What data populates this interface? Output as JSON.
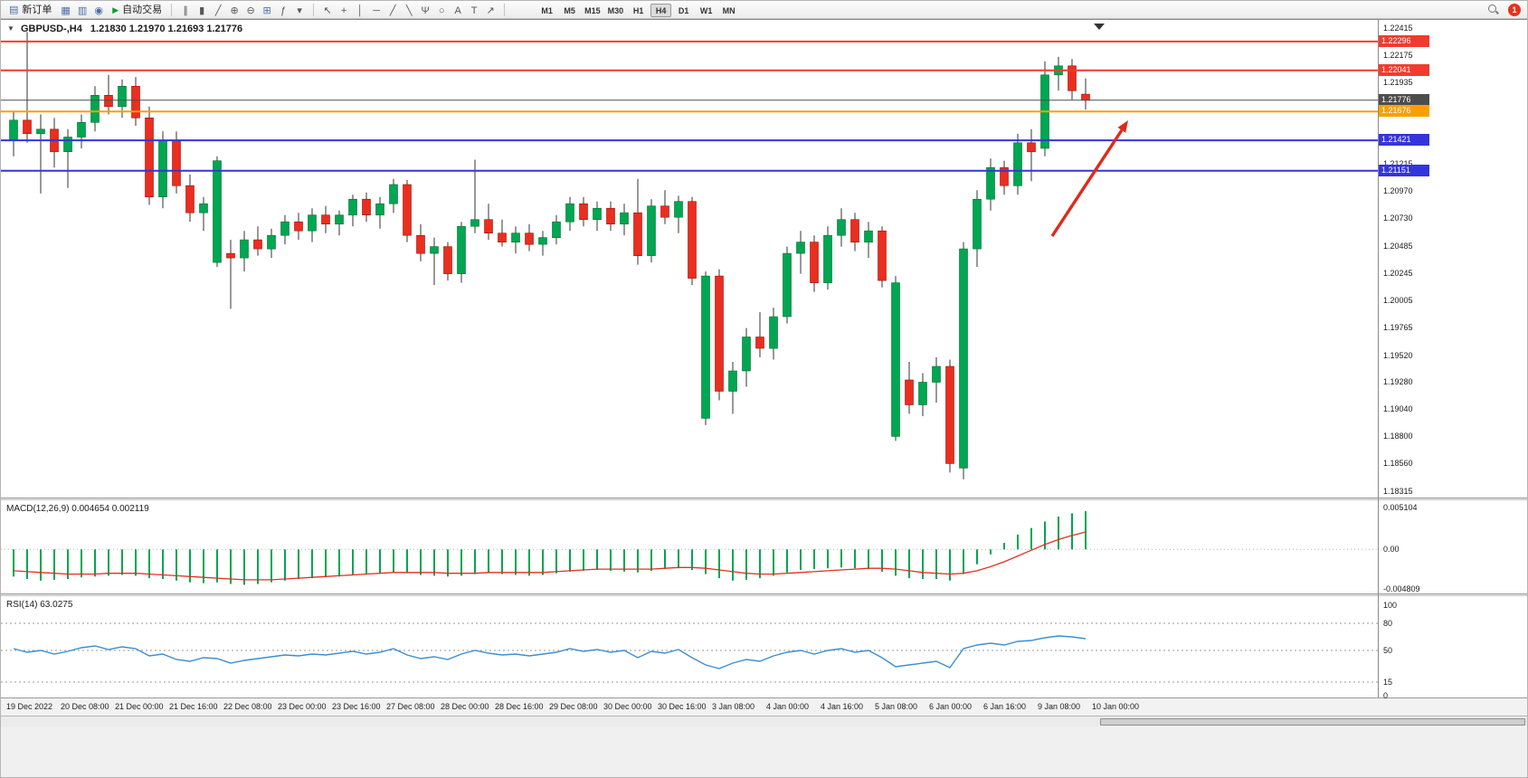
{
  "toolbar": {
    "new_order_label": "新订单",
    "new_order_icon_glyph": "▤",
    "autotrading_label": "自动交易",
    "autotrading_icon_glyph": "▶",
    "window_icon_buttons": [
      {
        "name": "charts-window-icon",
        "glyph": "▦"
      },
      {
        "name": "market-watch-icon",
        "glyph": "▥"
      },
      {
        "name": "data-window-icon",
        "glyph": "◉"
      }
    ],
    "chart_tool_buttons": [
      {
        "name": "bar-chart-icon",
        "glyph": "∥"
      },
      {
        "name": "candlestick-chart-icon",
        "glyph": "▮"
      },
      {
        "name": "line-chart-icon",
        "glyph": "╱"
      },
      {
        "name": "zoom-in-icon",
        "glyph": "⊕"
      },
      {
        "name": "zoom-out-icon",
        "glyph": "⊖"
      },
      {
        "name": "tile-windows-icon",
        "glyph": "⊞"
      },
      {
        "name": "indicators-icon",
        "glyph": "ƒ"
      },
      {
        "name": "periods-dropdown-icon",
        "glyph": "▾"
      }
    ],
    "drawing_tool_buttons": [
      {
        "name": "cursor-icon",
        "glyph": "↖"
      },
      {
        "name": "crosshair-icon",
        "glyph": "+"
      },
      {
        "name": "vertical-line-icon",
        "glyph": "│"
      },
      {
        "name": "horizontal-line-icon",
        "glyph": "─"
      },
      {
        "name": "trendline-icon",
        "glyph": "╱"
      },
      {
        "name": "channel-icon",
        "glyph": "╲"
      },
      {
        "name": "pitchfork-icon",
        "glyph": "Ψ"
      },
      {
        "name": "shapes-icon",
        "glyph": "○"
      },
      {
        "name": "text-icon",
        "glyph": "A"
      },
      {
        "name": "label-icon",
        "glyph": "T"
      },
      {
        "name": "arrows-icon",
        "glyph": "↗"
      }
    ],
    "timeframes": [
      "M1",
      "M5",
      "M15",
      "M30",
      "H1",
      "H4",
      "D1",
      "W1",
      "MN"
    ],
    "active_timeframe": "H4",
    "notification_count": "1"
  },
  "chart": {
    "collapse_glyph": "▼",
    "title_symbol": "GBPUSD-,H4",
    "title_quote": "1.21830 1.21970 1.21693 1.21776"
  },
  "chart_data": [
    {
      "type": "candlestick",
      "symbol": "GBPUSD-",
      "timeframe": "H4",
      "ylim": [
        1.18315,
        1.22415
      ],
      "bull_color": "#00a651",
      "bull_edge": "#00702f",
      "bear_color": "#ea2e1f",
      "bear_edge": "#9c130a",
      "wick_color": "#333333",
      "ohlc": [
        [
          1.2142,
          1.2168,
          1.2128,
          1.216
        ],
        [
          1.216,
          1.2238,
          1.214,
          1.2148
        ],
        [
          1.2148,
          1.2165,
          1.2095,
          1.2152
        ],
        [
          1.2152,
          1.2162,
          1.2118,
          1.2132
        ],
        [
          1.2132,
          1.2152,
          1.21,
          1.2145
        ],
        [
          1.2145,
          1.2165,
          1.2135,
          1.2158
        ],
        [
          1.2158,
          1.219,
          1.215,
          1.2182
        ],
        [
          1.2182,
          1.22,
          1.2165,
          1.2172
        ],
        [
          1.2172,
          1.2196,
          1.2162,
          1.219
        ],
        [
          1.219,
          1.2198,
          1.2155,
          1.2162
        ],
        [
          1.2162,
          1.2172,
          1.2085,
          1.2092
        ],
        [
          1.2092,
          1.215,
          1.2082,
          1.2142
        ],
        [
          1.2142,
          1.215,
          1.2095,
          1.2102
        ],
        [
          1.2102,
          1.2112,
          1.207,
          1.2078
        ],
        [
          1.2078,
          1.2092,
          1.2062,
          1.2086
        ],
        [
          1.2034,
          1.2128,
          1.203,
          1.2124
        ],
        [
          1.2042,
          1.2054,
          1.1993,
          1.2038
        ],
        [
          1.2038,
          1.2062,
          1.2026,
          1.2054
        ],
        [
          1.2054,
          1.2066,
          1.204,
          1.2046
        ],
        [
          1.2046,
          1.2064,
          1.2038,
          1.2058
        ],
        [
          1.2058,
          1.2076,
          1.205,
          1.207
        ],
        [
          1.207,
          1.2078,
          1.2054,
          1.2062
        ],
        [
          1.2062,
          1.2082,
          1.2052,
          1.2076
        ],
        [
          1.2076,
          1.2084,
          1.206,
          1.2068
        ],
        [
          1.2068,
          1.208,
          1.2058,
          1.2076
        ],
        [
          1.2076,
          1.2094,
          1.2066,
          1.209
        ],
        [
          1.209,
          1.2096,
          1.207,
          1.2076
        ],
        [
          1.2076,
          1.2092,
          1.2064,
          1.2086
        ],
        [
          1.2086,
          1.2108,
          1.2078,
          1.2103
        ],
        [
          1.2103,
          1.2107,
          1.2052,
          1.2058
        ],
        [
          1.2058,
          1.2068,
          1.2035,
          1.2042
        ],
        [
          1.2042,
          1.2056,
          1.2014,
          1.2048
        ],
        [
          1.2048,
          1.2052,
          1.2018,
          1.2024
        ],
        [
          1.2024,
          1.207,
          1.2016,
          1.2066
        ],
        [
          1.2066,
          1.2125,
          1.206,
          1.2072
        ],
        [
          1.2072,
          1.2086,
          1.2054,
          1.206
        ],
        [
          1.206,
          1.2072,
          1.2048,
          1.2052
        ],
        [
          1.2052,
          1.2066,
          1.2042,
          1.206
        ],
        [
          1.206,
          1.2068,
          1.2044,
          1.205
        ],
        [
          1.205,
          1.2062,
          1.204,
          1.2056
        ],
        [
          1.2056,
          1.2076,
          1.205,
          1.207
        ],
        [
          1.207,
          1.2092,
          1.2062,
          1.2086
        ],
        [
          1.2086,
          1.2092,
          1.2066,
          1.2072
        ],
        [
          1.2072,
          1.2088,
          1.2062,
          1.2082
        ],
        [
          1.2082,
          1.2088,
          1.2062,
          1.2068
        ],
        [
          1.2068,
          1.2086,
          1.2058,
          1.2078
        ],
        [
          1.2078,
          1.2108,
          1.2032,
          1.204
        ],
        [
          1.204,
          1.209,
          1.2034,
          1.2084
        ],
        [
          1.2084,
          1.2098,
          1.2068,
          1.2074
        ],
        [
          1.2074,
          1.2093,
          1.206,
          1.2088
        ],
        [
          1.2088,
          1.2092,
          1.2014,
          1.202
        ],
        [
          1.1896,
          1.2026,
          1.189,
          1.2022
        ],
        [
          1.2022,
          1.2028,
          1.1912,
          1.192
        ],
        [
          1.192,
          1.1946,
          1.19,
          1.1938
        ],
        [
          1.1938,
          1.1976,
          1.1924,
          1.1968
        ],
        [
          1.1968,
          1.199,
          1.195,
          1.1958
        ],
        [
          1.1958,
          1.1994,
          1.1948,
          1.1986
        ],
        [
          1.1986,
          1.2048,
          1.198,
          1.2042
        ],
        [
          1.2042,
          1.2062,
          1.2024,
          1.2052
        ],
        [
          1.2052,
          1.2058,
          1.2008,
          1.2016
        ],
        [
          1.2016,
          1.2066,
          1.201,
          1.2058
        ],
        [
          1.2058,
          1.2082,
          1.2048,
          1.2072
        ],
        [
          1.2072,
          1.2078,
          1.2044,
          1.2052
        ],
        [
          1.2052,
          1.207,
          1.2038,
          1.2062
        ],
        [
          1.2062,
          1.2066,
          1.2012,
          1.2018
        ],
        [
          1.188,
          1.2022,
          1.1876,
          1.2016
        ],
        [
          1.193,
          1.1946,
          1.19,
          1.1908
        ],
        [
          1.1908,
          1.1936,
          1.1898,
          1.1928
        ],
        [
          1.1928,
          1.195,
          1.191,
          1.1942
        ],
        [
          1.1942,
          1.1948,
          1.1848,
          1.1856
        ],
        [
          1.1852,
          1.2052,
          1.1842,
          1.2046
        ],
        [
          1.2046,
          1.2098,
          1.203,
          1.209
        ],
        [
          1.209,
          1.2126,
          1.208,
          1.2118
        ],
        [
          1.2118,
          1.2124,
          1.2094,
          1.2102
        ],
        [
          1.2102,
          1.2148,
          1.2094,
          1.214
        ],
        [
          1.214,
          1.2152,
          1.2106,
          1.2132
        ],
        [
          1.2135,
          1.2212,
          1.2128,
          1.22
        ],
        [
          1.22,
          1.2216,
          1.2186,
          1.2208
        ],
        [
          1.2208,
          1.2214,
          1.2178,
          1.2186
        ],
        [
          1.2183,
          1.2197,
          1.21693,
          1.21776
        ]
      ],
      "time_labels": [
        "19 Dec 2022",
        "20 Dec 08:00",
        "21 Dec 00:00",
        "21 Dec 16:00",
        "22 Dec 08:00",
        "23 Dec 00:00",
        "23 Dec 16:00",
        "27 Dec 08:00",
        "28 Dec 00:00",
        "28 Dec 16:00",
        "29 Dec 08:00",
        "30 Dec 00:00",
        "30 Dec 16:00",
        "3 Jan 08:00",
        "4 Jan 00:00",
        "4 Jan 16:00",
        "5 Jan 08:00",
        "6 Jan 00:00",
        "6 Jan 16:00",
        "9 Jan 08:00",
        "10 Jan 00:00"
      ],
      "price_axis_ticks": [
        "1.22415",
        "1.22175",
        "1.21935",
        "1.21215",
        "1.20970",
        "1.20730",
        "1.20485",
        "1.20245",
        "1.20005",
        "1.19765",
        "1.19520",
        "1.19280",
        "1.19040",
        "1.18800",
        "1.18560",
        "1.18315"
      ],
      "hlines": [
        {
          "name": "resistance-line-upper",
          "price": 1.22296,
          "label": "1.22296",
          "color": "#f23b2e",
          "width": 2
        },
        {
          "name": "resistance-line-lower",
          "price": 1.22041,
          "label": "1.22041",
          "color": "#f23b2e",
          "width": 2
        },
        {
          "name": "bid-price-line",
          "price": 1.21776,
          "label": "1.21776",
          "color": "#4d4d4d",
          "width": 1
        },
        {
          "name": "pivot-line-orange",
          "price": 1.21676,
          "label": "1.21676",
          "color": "#f9a000",
          "width": 2
        },
        {
          "name": "support-line-upper",
          "price": 1.21421,
          "label": "1.21421",
          "color": "#3434dd",
          "width": 2
        },
        {
          "name": "support-line-lower",
          "price": 1.21151,
          "label": "1.21151",
          "color": "#3434dd",
          "width": 2
        }
      ],
      "annotation_arrow": {
        "from": [
          1162,
          240
        ],
        "to": [
          1246,
          112
        ],
        "color": "#e02a1a"
      }
    },
    {
      "type": "macd",
      "title": "MACD(12,26,9) 0.004654 0.002119",
      "ylim": [
        -0.004809,
        0.005104
      ],
      "axis_values": [
        0.005104,
        0,
        -0.004809
      ],
      "axis_labels": [
        "0.005104",
        "0.00",
        "-0.004809"
      ],
      "histogram_color": "#00a651",
      "signal_color": "#e03224",
      "histogram": [
        -0.0033,
        -0.0036,
        -0.0038,
        -0.0037,
        -0.0036,
        -0.0034,
        -0.0033,
        -0.0032,
        -0.0031,
        -0.0032,
        -0.0035,
        -0.0036,
        -0.0038,
        -0.004,
        -0.0041,
        -0.004,
        -0.0042,
        -0.0043,
        -0.0042,
        -0.004,
        -0.0038,
        -0.0036,
        -0.0035,
        -0.0034,
        -0.0033,
        -0.0031,
        -0.003,
        -0.0029,
        -0.0028,
        -0.0029,
        -0.0031,
        -0.0032,
        -0.0033,
        -0.0032,
        -0.003,
        -0.0029,
        -0.003,
        -0.0031,
        -0.0032,
        -0.0031,
        -0.0029,
        -0.0027,
        -0.0026,
        -0.0025,
        -0.0026,
        -0.0027,
        -0.0028,
        -0.0026,
        -0.0024,
        -0.0023,
        -0.0025,
        -0.003,
        -0.0035,
        -0.0038,
        -0.0037,
        -0.0035,
        -0.0032,
        -0.0028,
        -0.0025,
        -0.0024,
        -0.0023,
        -0.0022,
        -0.0023,
        -0.0024,
        -0.0027,
        -0.0032,
        -0.0035,
        -0.0036,
        -0.0036,
        -0.0038,
        -0.003,
        -0.0018,
        -0.0006,
        0.0008,
        0.0018,
        0.0026,
        0.0034,
        0.004,
        0.0044,
        0.004654
      ],
      "signal": [
        -0.0026,
        -0.0027,
        -0.0028,
        -0.0029,
        -0.003,
        -0.003,
        -0.003,
        -0.0029,
        -0.0029,
        -0.0029,
        -0.003,
        -0.0031,
        -0.0032,
        -0.0033,
        -0.0034,
        -0.0035,
        -0.0036,
        -0.0037,
        -0.0037,
        -0.0037,
        -0.0036,
        -0.0035,
        -0.0034,
        -0.0033,
        -0.0032,
        -0.0031,
        -0.003,
        -0.0029,
        -0.0028,
        -0.0028,
        -0.0028,
        -0.0028,
        -0.0029,
        -0.0029,
        -0.0029,
        -0.0028,
        -0.0028,
        -0.0028,
        -0.0028,
        -0.0028,
        -0.0027,
        -0.0026,
        -0.0025,
        -0.0024,
        -0.0024,
        -0.0024,
        -0.0024,
        -0.0024,
        -0.0023,
        -0.0022,
        -0.0022,
        -0.0023,
        -0.0025,
        -0.0027,
        -0.0029,
        -0.003,
        -0.003,
        -0.0029,
        -0.0028,
        -0.0027,
        -0.0026,
        -0.0025,
        -0.0024,
        -0.0023,
        -0.0023,
        -0.0024,
        -0.0026,
        -0.0028,
        -0.0029,
        -0.003,
        -0.0029,
        -0.0026,
        -0.0021,
        -0.0015,
        -0.0008,
        -0.0001,
        0.0006,
        0.0012,
        0.0017,
        0.002119
      ]
    },
    {
      "type": "rsi",
      "title": "RSI(14) 63.0275",
      "ylim": [
        0,
        100
      ],
      "axis_values": [
        100,
        80,
        50,
        15,
        0
      ],
      "axis_labels": [
        "100",
        "80",
        "50",
        "15",
        "0"
      ],
      "levels": [
        80,
        50,
        15
      ],
      "line_color": "#3d8fd1",
      "values": [
        52,
        48,
        50,
        46,
        49,
        53,
        55,
        51,
        54,
        52,
        44,
        46,
        40,
        38,
        42,
        41,
        36,
        39,
        41,
        43,
        45,
        44,
        46,
        45,
        47,
        49,
        46,
        48,
        52,
        45,
        41,
        43,
        40,
        46,
        50,
        47,
        45,
        46,
        44,
        46,
        48,
        52,
        49,
        51,
        48,
        50,
        42,
        49,
        47,
        51,
        42,
        34,
        30,
        36,
        40,
        38,
        44,
        48,
        50,
        46,
        50,
        52,
        48,
        50,
        42,
        32,
        34,
        36,
        38,
        31,
        52,
        56,
        58,
        56,
        60,
        61,
        64,
        66,
        65,
        63.03
      ]
    }
  ]
}
